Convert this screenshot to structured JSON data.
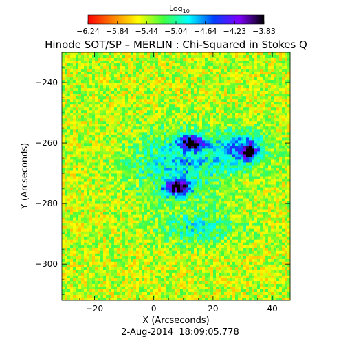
{
  "chart_data": {
    "type": "heatmap",
    "title": "Hinode SOT/SP – MERLIN : Chi-Squared in Stokes Q",
    "colorbar": {
      "label_base": "Log",
      "label_sub": "10",
      "ticks": [
        "−6.24",
        "−5.84",
        "−5.44",
        "−5.04",
        "−4.64",
        "−4.23",
        "−3.83"
      ],
      "range": [
        -6.24,
        -3.83
      ],
      "colors": [
        "#ff0000",
        "#ff8000",
        "#ffff00",
        "#40ff40",
        "#00ffff",
        "#0040ff",
        "#8000ff",
        "#000000"
      ]
    },
    "xlabel": "X (Arcseconds)",
    "ylabel": "Y (Arcseconds)",
    "xlim": [
      -31,
      46
    ],
    "ylim": [
      -312,
      -230
    ],
    "xticks": [
      -20,
      0,
      20,
      40
    ],
    "xtick_labels": [
      "−20",
      "0",
      "20",
      "40"
    ],
    "yticks": [
      -240,
      -260,
      -280,
      -300
    ],
    "ytick_labels": [
      "−240",
      "−260",
      "−280",
      "−300"
    ],
    "background_log10_value": -5.45,
    "features": [
      {
        "name": "active region core",
        "x": 9,
        "y": -267,
        "sx": 12,
        "sy": 8,
        "peak": -4.85
      },
      {
        "name": "eastern blob",
        "x": 30,
        "y": -262,
        "sx": 6,
        "sy": 4,
        "peak": -4.7
      },
      {
        "name": "dark patch upper",
        "x": 13,
        "y": -260,
        "sx": 3,
        "sy": 1.6,
        "peak": -3.95
      },
      {
        "name": "dark patch lower",
        "x": 8,
        "y": -275,
        "sx": 2.8,
        "sy": 1.8,
        "peak": -3.95
      },
      {
        "name": "dark patch east",
        "x": 32,
        "y": -263,
        "sx": 1.5,
        "sy": 1.6,
        "peak": -4.1
      },
      {
        "name": "green band south",
        "x": 15,
        "y": -288,
        "sx": 10,
        "sy": 4,
        "peak": -5.0
      }
    ]
  },
  "footer": {
    "timestamp": "2-Aug-2014  18:09:05.778"
  }
}
